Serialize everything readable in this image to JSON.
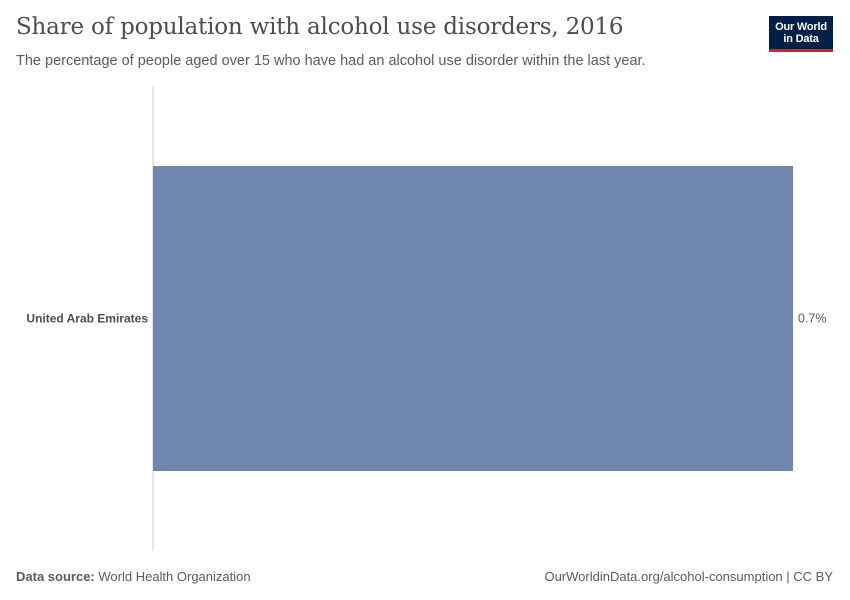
{
  "chart_data": {
    "type": "bar",
    "orientation": "horizontal",
    "title": "Share of population with alcohol use disorders, 2016",
    "subtitle": "The percentage of people aged over 15 who have had an alcohol use disorder within the last year.",
    "categories": [
      "United Arab Emirates"
    ],
    "values": [
      0.7
    ],
    "value_labels": [
      "0.7%"
    ],
    "xlim": [
      0,
      0.7
    ],
    "xlabel": "",
    "ylabel": "",
    "grid": false,
    "bar_color": "#6f87ae",
    "axis_color": "#cccccc"
  },
  "logo": {
    "line1": "Our World",
    "line2": "in Data",
    "bg_color": "#002147",
    "accent_color": "#ce261e"
  },
  "footer": {
    "source_label": "Data source:",
    "source_text": "World Health Organization",
    "url_text": "OurWorldinData.org/alcohol-consumption | CC BY"
  }
}
